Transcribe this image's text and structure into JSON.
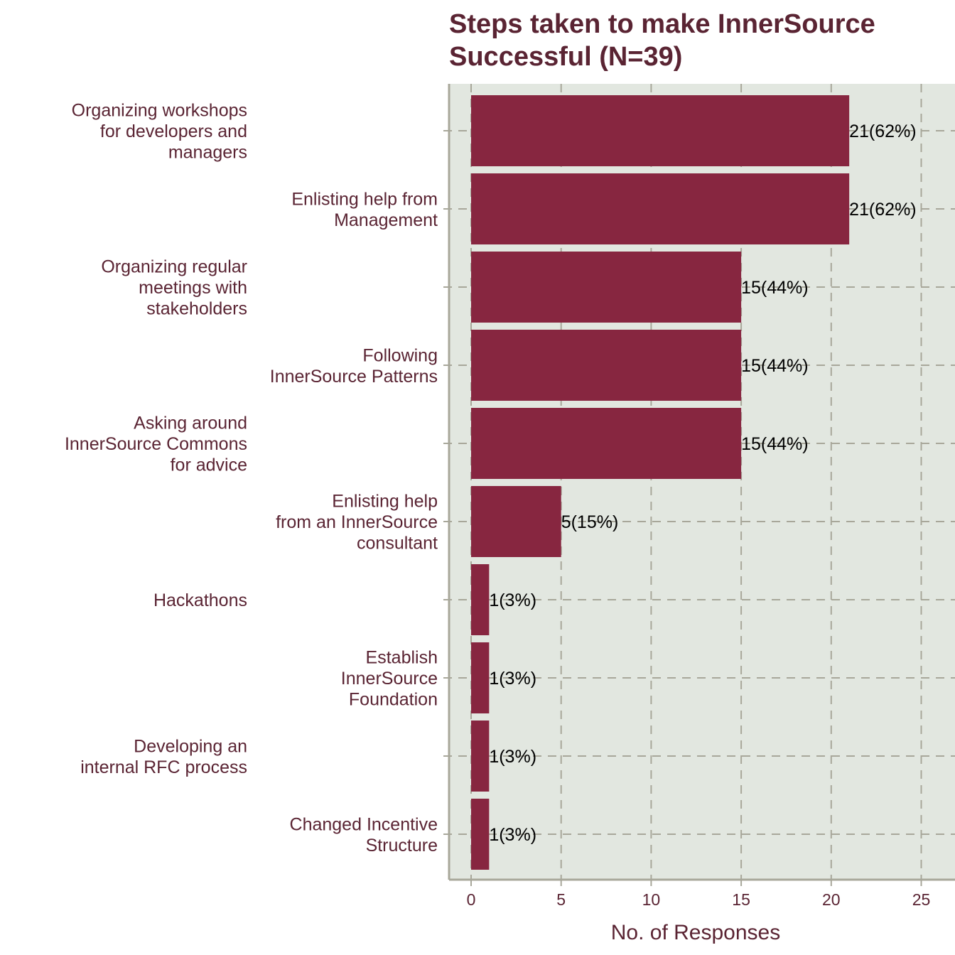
{
  "chart_data": {
    "type": "bar",
    "orientation": "horizontal",
    "title": [
      "Steps taken to make InnerSource",
      "Successful (N=39)"
    ],
    "xlabel": "No. of Responses",
    "ylabel": "",
    "xlim": [
      0,
      25
    ],
    "xticks": [
      0,
      5,
      10,
      15,
      20,
      25
    ],
    "grid": true,
    "categories": [
      [
        "Organizing workshops",
        "for developers and",
        "managers"
      ],
      [
        "Enlisting help from",
        "Management"
      ],
      [
        "Organizing regular",
        "meetings with",
        "stakeholders"
      ],
      [
        "Following",
        "InnerSource Patterns"
      ],
      [
        "Asking around",
        "InnerSource Commons",
        "for advice"
      ],
      [
        "Enlisting help",
        "from an InnerSource",
        "consultant"
      ],
      [
        "Hackathons"
      ],
      [
        "Establish",
        "InnerSource",
        "Foundation"
      ],
      [
        "Developing an",
        "internal RFC process"
      ],
      [
        "Changed Incentive",
        "Structure"
      ]
    ],
    "values": [
      21,
      21,
      15,
      15,
      15,
      5,
      1,
      1,
      1,
      1
    ],
    "data_labels": [
      "21(62%)",
      "21(62%)",
      "15(44%)",
      "15(44%)",
      "15(44%)",
      "5(15%)",
      "1(3%)",
      "1(3%)",
      "1(3%)",
      "1(3%)"
    ],
    "colors": {
      "bar": "#872640",
      "plot_background": "#e2e7e0",
      "grid": "#a8a79a",
      "axis": "#a8a79a",
      "text": "#5a2433"
    }
  }
}
